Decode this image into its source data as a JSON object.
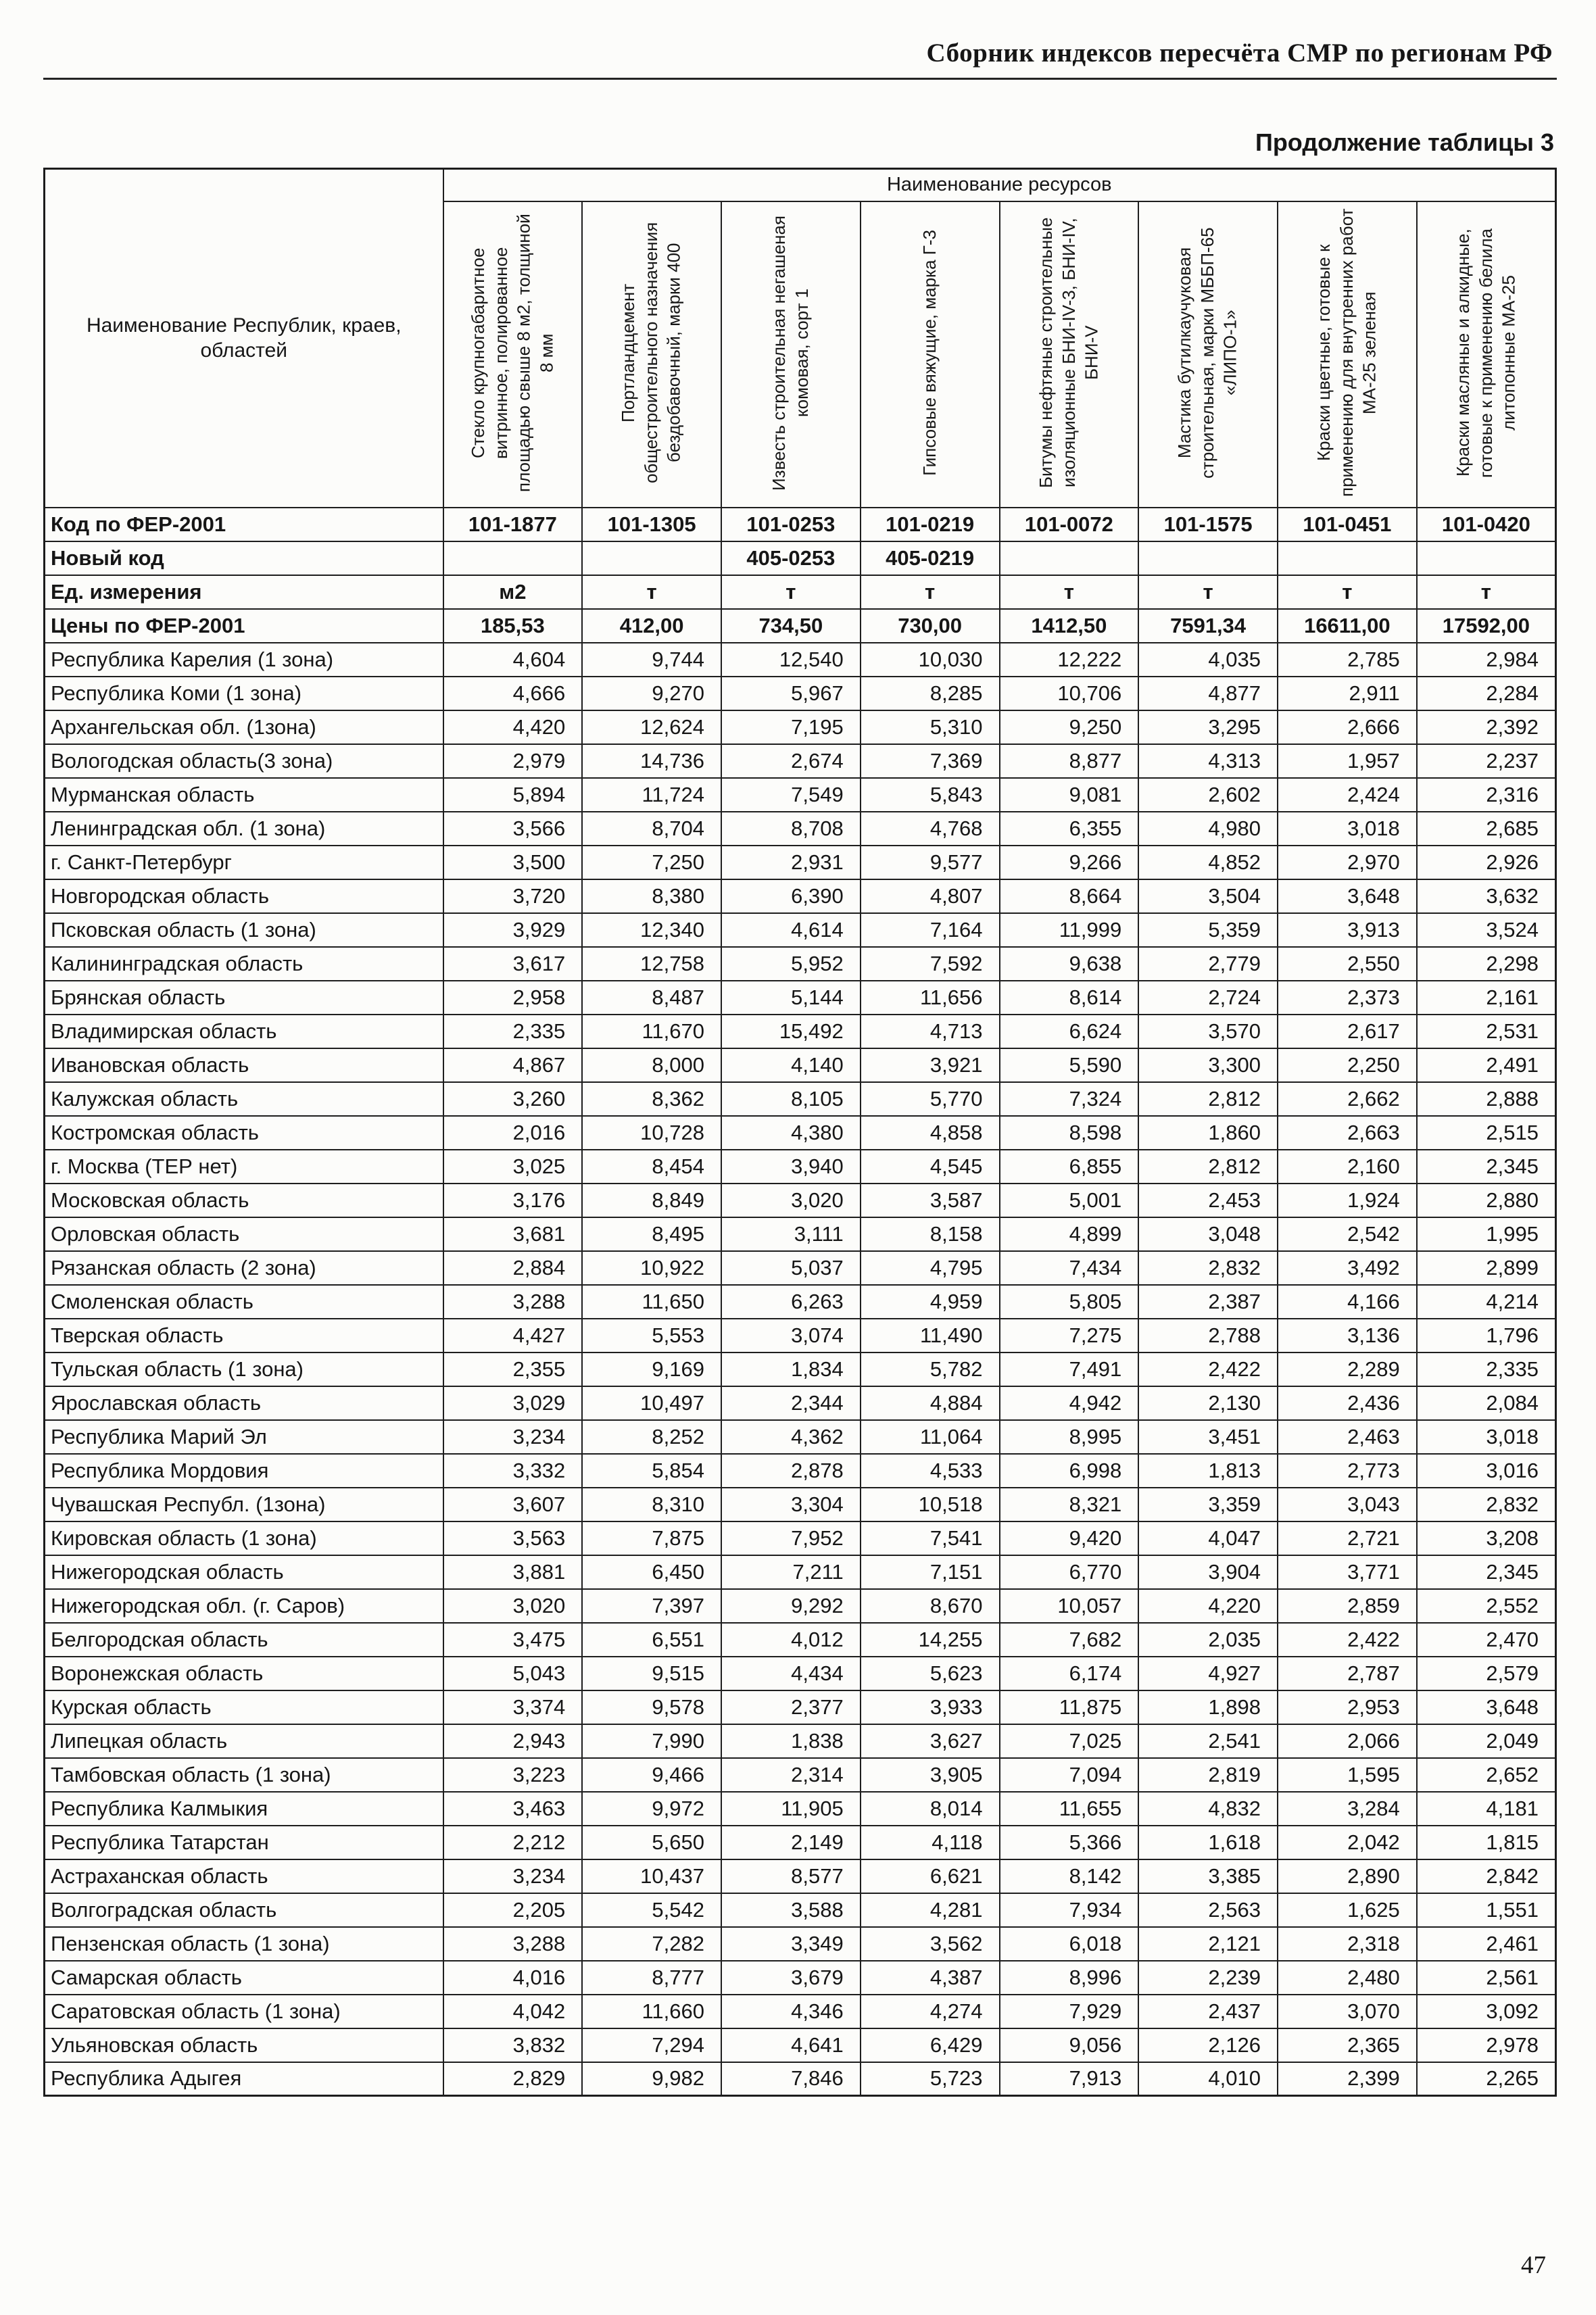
{
  "page": {
    "header": "Сборник индексов пересчёта СМР по регионам РФ",
    "caption": "Продолжение таблицы 3",
    "page_number": "47"
  },
  "table": {
    "resources_header": "Наименование ресурсов",
    "region_column_header": "Наименование Республик, краев, областей",
    "resource_columns": [
      "Стекло крупногабаритное витринное, полированное площадью свыше 8 м2, толщиной 8 мм",
      "Портландцемент общестроительного назначения бездобавочный, марки 400",
      "Известь строительная негашеная комовая, сорт 1",
      "Гипсовые вяжущие, марка Г-3",
      "Битумы нефтяные строительные изоляционные БНИ-IV-3, БНИ-IV, БНИ-V",
      "Мастика бутилкаучуковая строительная, марки МББП-65 «ЛИПО-1»",
      "Краски цветные, готовые к применению для внутренних работ МА-25 зеленая",
      "Краски масляные и алкидные, готовые к применению белила литопонные МА-25"
    ],
    "meta_rows": [
      {
        "label": "Код по ФЕР-2001",
        "values": [
          "101-1877",
          "101-1305",
          "101-0253",
          "101-0219",
          "101-0072",
          "101-1575",
          "101-0451",
          "101-0420"
        ]
      },
      {
        "label": "Новый код",
        "values": [
          "",
          "",
          "405-0253",
          "405-0219",
          "",
          "",
          "",
          ""
        ]
      },
      {
        "label": "Ед. измерения",
        "values": [
          "м2",
          "т",
          "т",
          "т",
          "т",
          "т",
          "т",
          "т"
        ]
      },
      {
        "label": "Цены по ФЕР-2001",
        "values": [
          "185,53",
          "412,00",
          "734,50",
          "730,00",
          "1412,50",
          "7591,34",
          "16611,00",
          "17592,00"
        ]
      }
    ],
    "rows": [
      {
        "region": "Республика Карелия (1 зона)",
        "values": [
          "4,604",
          "9,744",
          "12,540",
          "10,030",
          "12,222",
          "4,035",
          "2,785",
          "2,984"
        ]
      },
      {
        "region": "Республика Коми (1 зона)",
        "values": [
          "4,666",
          "9,270",
          "5,967",
          "8,285",
          "10,706",
          "4,877",
          "2,911",
          "2,284"
        ]
      },
      {
        "region": "Архангельская обл. (1зона)",
        "values": [
          "4,420",
          "12,624",
          "7,195",
          "5,310",
          "9,250",
          "3,295",
          "2,666",
          "2,392"
        ]
      },
      {
        "region": "Вологодская область(3 зона)",
        "values": [
          "2,979",
          "14,736",
          "2,674",
          "7,369",
          "8,877",
          "4,313",
          "1,957",
          "2,237"
        ]
      },
      {
        "region": "Мурманская область",
        "values": [
          "5,894",
          "11,724",
          "7,549",
          "5,843",
          "9,081",
          "2,602",
          "2,424",
          "2,316"
        ]
      },
      {
        "region": "Ленинградская обл. (1 зона)",
        "values": [
          "3,566",
          "8,704",
          "8,708",
          "4,768",
          "6,355",
          "4,980",
          "3,018",
          "2,685"
        ]
      },
      {
        "region": "г. Санкт-Петербург",
        "values": [
          "3,500",
          "7,250",
          "2,931",
          "9,577",
          "9,266",
          "4,852",
          "2,970",
          "2,926"
        ]
      },
      {
        "region": "Новгородская область",
        "values": [
          "3,720",
          "8,380",
          "6,390",
          "4,807",
          "8,664",
          "3,504",
          "3,648",
          "3,632"
        ]
      },
      {
        "region": "Псковская область (1 зона)",
        "values": [
          "3,929",
          "12,340",
          "4,614",
          "7,164",
          "11,999",
          "5,359",
          "3,913",
          "3,524"
        ]
      },
      {
        "region": "Калининградская область",
        "values": [
          "3,617",
          "12,758",
          "5,952",
          "7,592",
          "9,638",
          "2,779",
          "2,550",
          "2,298"
        ]
      },
      {
        "region": "Брянская область",
        "values": [
          "2,958",
          "8,487",
          "5,144",
          "11,656",
          "8,614",
          "2,724",
          "2,373",
          "2,161"
        ]
      },
      {
        "region": "Владимирская область",
        "values": [
          "2,335",
          "11,670",
          "15,492",
          "4,713",
          "6,624",
          "3,570",
          "2,617",
          "2,531"
        ]
      },
      {
        "region": "Ивановская область",
        "values": [
          "4,867",
          "8,000",
          "4,140",
          "3,921",
          "5,590",
          "3,300",
          "2,250",
          "2,491"
        ]
      },
      {
        "region": "Калужская область",
        "values": [
          "3,260",
          "8,362",
          "8,105",
          "5,770",
          "7,324",
          "2,812",
          "2,662",
          "2,888"
        ]
      },
      {
        "region": "Костромская область",
        "values": [
          "2,016",
          "10,728",
          "4,380",
          "4,858",
          "8,598",
          "1,860",
          "2,663",
          "2,515"
        ]
      },
      {
        "region": "г. Москва (ТЕР нет)",
        "values": [
          "3,025",
          "8,454",
          "3,940",
          "4,545",
          "6,855",
          "2,812",
          "2,160",
          "2,345"
        ]
      },
      {
        "region": "Московская  область",
        "values": [
          "3,176",
          "8,849",
          "3,020",
          "3,587",
          "5,001",
          "2,453",
          "1,924",
          "2,880"
        ]
      },
      {
        "region": "Орловская область",
        "values": [
          "3,681",
          "8,495",
          "3,111",
          "8,158",
          "4,899",
          "3,048",
          "2,542",
          "1,995"
        ]
      },
      {
        "region": "Рязанская область (2 зона)",
        "values": [
          "2,884",
          "10,922",
          "5,037",
          "4,795",
          "7,434",
          "2,832",
          "3,492",
          "2,899"
        ]
      },
      {
        "region": "Смоленская область",
        "values": [
          "3,288",
          "11,650",
          "6,263",
          "4,959",
          "5,805",
          "2,387",
          "4,166",
          "4,214"
        ]
      },
      {
        "region": "Тверская область",
        "values": [
          "4,427",
          "5,553",
          "3,074",
          "11,490",
          "7,275",
          "2,788",
          "3,136",
          "1,796"
        ]
      },
      {
        "region": "Тульская область (1 зона)",
        "values": [
          "2,355",
          "9,169",
          "1,834",
          "5,782",
          "7,491",
          "2,422",
          "2,289",
          "2,335"
        ]
      },
      {
        "region": "Ярославская область",
        "values": [
          "3,029",
          "10,497",
          "2,344",
          "4,884",
          "4,942",
          "2,130",
          "2,436",
          "2,084"
        ]
      },
      {
        "region": "Республика Марий Эл",
        "values": [
          "3,234",
          "8,252",
          "4,362",
          "11,064",
          "8,995",
          "3,451",
          "2,463",
          "3,018"
        ]
      },
      {
        "region": "Республика Мордовия",
        "values": [
          "3,332",
          "5,854",
          "2,878",
          "4,533",
          "6,998",
          "1,813",
          "2,773",
          "3,016"
        ]
      },
      {
        "region": "Чувашская Республ. (1зона)",
        "values": [
          "3,607",
          "8,310",
          "3,304",
          "10,518",
          "8,321",
          "3,359",
          "3,043",
          "2,832"
        ]
      },
      {
        "region": "Кировская область (1 зона)",
        "values": [
          "3,563",
          "7,875",
          "7,952",
          "7,541",
          "9,420",
          "4,047",
          "2,721",
          "3,208"
        ]
      },
      {
        "region": "Нижегородская область",
        "values": [
          "3,881",
          "6,450",
          "7,211",
          "7,151",
          "6,770",
          "3,904",
          "3,771",
          "2,345"
        ]
      },
      {
        "region": "Нижегородская обл. (г. Саров)",
        "values": [
          "3,020",
          "7,397",
          "9,292",
          "8,670",
          "10,057",
          "4,220",
          "2,859",
          "2,552"
        ]
      },
      {
        "region": "Белгородская область",
        "values": [
          "3,475",
          "6,551",
          "4,012",
          "14,255",
          "7,682",
          "2,035",
          "2,422",
          "2,470"
        ]
      },
      {
        "region": "Воронежская область",
        "values": [
          "5,043",
          "9,515",
          "4,434",
          "5,623",
          "6,174",
          "4,927",
          "2,787",
          "2,579"
        ]
      },
      {
        "region": "Курская область",
        "values": [
          "3,374",
          "9,578",
          "2,377",
          "3,933",
          "11,875",
          "1,898",
          "2,953",
          "3,648"
        ]
      },
      {
        "region": "Липецкая область",
        "values": [
          "2,943",
          "7,990",
          "1,838",
          "3,627",
          "7,025",
          "2,541",
          "2,066",
          "2,049"
        ]
      },
      {
        "region": "Тамбовская область (1 зона)",
        "values": [
          "3,223",
          "9,466",
          "2,314",
          "3,905",
          "7,094",
          "2,819",
          "1,595",
          "2,652"
        ]
      },
      {
        "region": "Республика Калмыкия",
        "values": [
          "3,463",
          "9,972",
          "11,905",
          "8,014",
          "11,655",
          "4,832",
          "3,284",
          "4,181"
        ]
      },
      {
        "region": "Республика Татарстан",
        "values": [
          "2,212",
          "5,650",
          "2,149",
          "4,118",
          "5,366",
          "1,618",
          "2,042",
          "1,815"
        ]
      },
      {
        "region": "Астраханская область",
        "values": [
          "3,234",
          "10,437",
          "8,577",
          "6,621",
          "8,142",
          "3,385",
          "2,890",
          "2,842"
        ]
      },
      {
        "region": "Волгоградская область",
        "values": [
          "2,205",
          "5,542",
          "3,588",
          "4,281",
          "7,934",
          "2,563",
          "1,625",
          "1,551"
        ]
      },
      {
        "region": "Пензенская область (1 зона)",
        "values": [
          "3,288",
          "7,282",
          "3,349",
          "3,562",
          "6,018",
          "2,121",
          "2,318",
          "2,461"
        ]
      },
      {
        "region": "Самарская область",
        "values": [
          "4,016",
          "8,777",
          "3,679",
          "4,387",
          "8,996",
          "2,239",
          "2,480",
          "2,561"
        ]
      },
      {
        "region": "Саратовская область (1 зона)",
        "values": [
          "4,042",
          "11,660",
          "4,346",
          "4,274",
          "7,929",
          "2,437",
          "3,070",
          "3,092"
        ]
      },
      {
        "region": "Ульяновская область",
        "values": [
          "3,832",
          "7,294",
          "4,641",
          "6,429",
          "9,056",
          "2,126",
          "2,365",
          "2,978"
        ]
      },
      {
        "region": "Республика Адыгея",
        "values": [
          "2,829",
          "9,982",
          "7,846",
          "5,723",
          "7,913",
          "4,010",
          "2,399",
          "2,265"
        ]
      }
    ]
  }
}
